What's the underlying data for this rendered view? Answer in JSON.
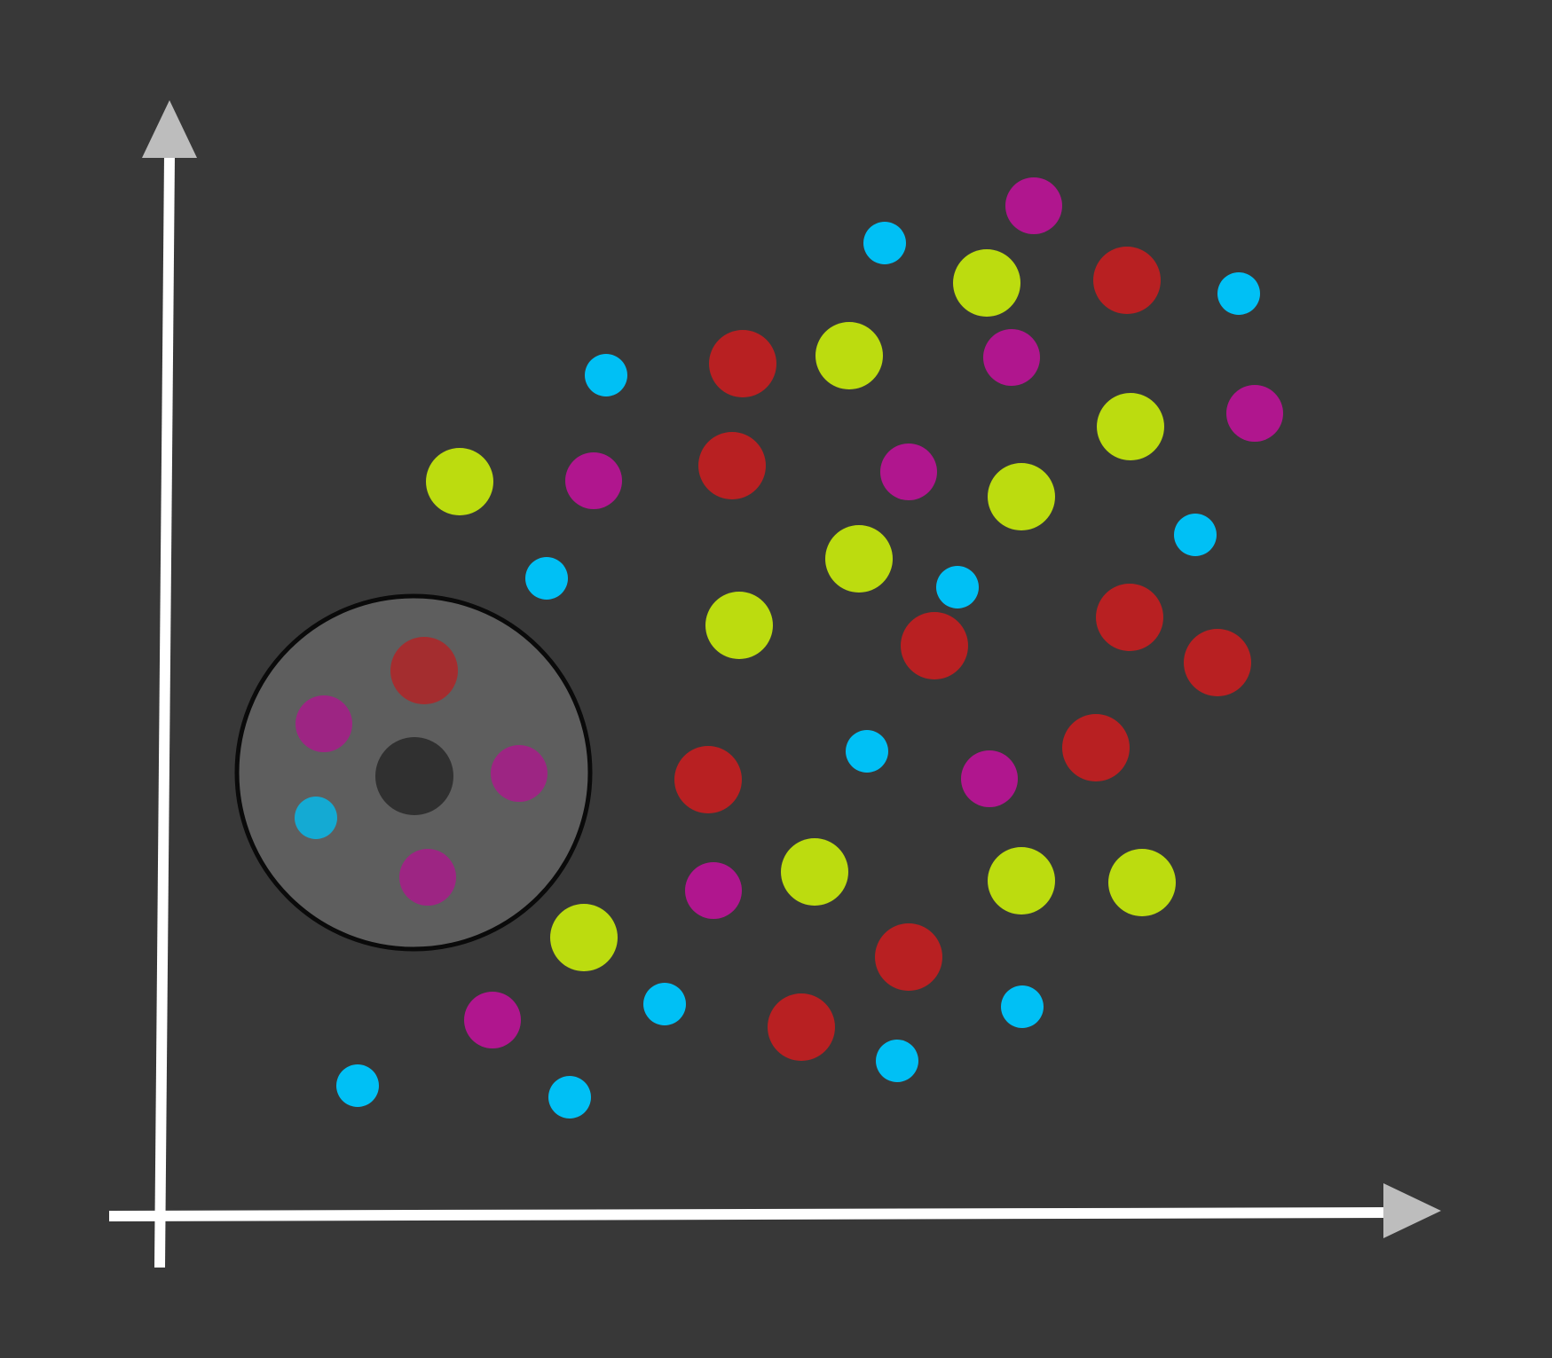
{
  "diagram": {
    "type": "knn-neighborhood-scatter",
    "colors": {
      "background": "#383838",
      "axis": "#ffffff",
      "arrowhead": "#bdbdbd",
      "red": "#b82022",
      "lime": "#bcdc0f",
      "magenta": "#b0168e",
      "cyan": "#00c0f5",
      "neighborhood_fill": "#5e5e5e",
      "neighborhood_stroke": "#0a0a0a",
      "query_point": "#303030"
    },
    "classes": [
      {
        "id": "red",
        "size": "large"
      },
      {
        "id": "lime",
        "size": "large"
      },
      {
        "id": "magenta",
        "size": "medium"
      },
      {
        "id": "cyan",
        "size": "small"
      }
    ],
    "points": [
      {
        "class": "magenta"
      },
      {
        "class": "cyan"
      },
      {
        "class": "lime"
      },
      {
        "class": "red"
      },
      {
        "class": "cyan"
      },
      {
        "class": "cyan"
      },
      {
        "class": "red"
      },
      {
        "class": "lime"
      },
      {
        "class": "magenta"
      },
      {
        "class": "lime"
      },
      {
        "class": "magenta"
      },
      {
        "class": "lime"
      },
      {
        "class": "magenta"
      },
      {
        "class": "red"
      },
      {
        "class": "magenta"
      },
      {
        "class": "lime"
      },
      {
        "class": "cyan"
      },
      {
        "class": "cyan"
      },
      {
        "class": "lime"
      },
      {
        "class": "cyan"
      },
      {
        "class": "lime"
      },
      {
        "class": "red"
      },
      {
        "class": "red"
      },
      {
        "class": "red"
      },
      {
        "class": "red"
      },
      {
        "class": "cyan"
      },
      {
        "class": "magenta"
      },
      {
        "class": "red"
      },
      {
        "class": "lime"
      },
      {
        "class": "magenta"
      },
      {
        "class": "lime"
      },
      {
        "class": "lime"
      },
      {
        "class": "lime"
      },
      {
        "class": "red"
      },
      {
        "class": "magenta"
      },
      {
        "class": "cyan"
      },
      {
        "class": "red"
      },
      {
        "class": "cyan"
      },
      {
        "class": "cyan"
      },
      {
        "class": "cyan"
      },
      {
        "class": "cyan"
      }
    ],
    "neighborhood": {
      "query_point": "query",
      "neighbors": [
        {
          "class": "red"
        },
        {
          "class": "magenta"
        },
        {
          "class": "magenta"
        },
        {
          "class": "cyan"
        },
        {
          "class": "magenta"
        }
      ]
    }
  }
}
